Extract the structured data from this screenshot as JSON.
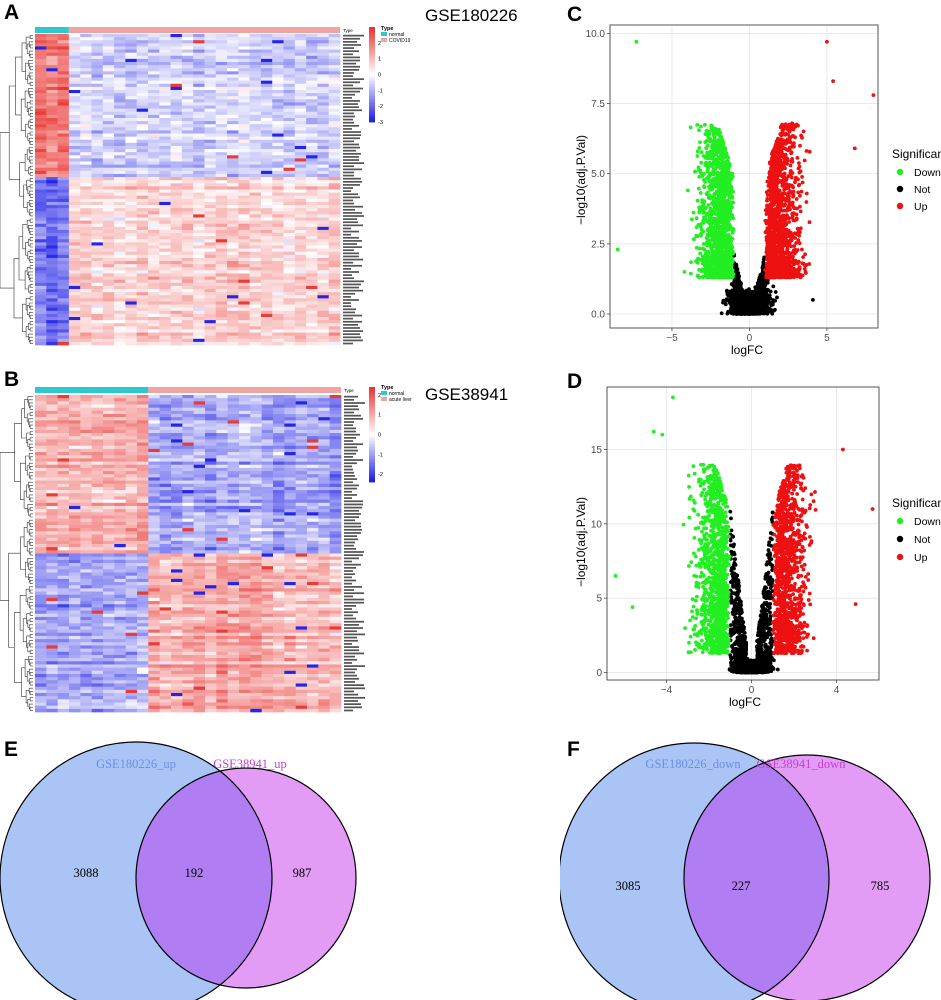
{
  "panels": {
    "a": {
      "letter": "A"
    },
    "b": {
      "letter": "B"
    },
    "c": {
      "letter": "C"
    },
    "d": {
      "letter": "D"
    },
    "e": {
      "letter": "E"
    },
    "f": {
      "letter": "F"
    }
  },
  "colors": {
    "normal": "#2ec8cf",
    "disease": "#f0a4a0",
    "heat_low": "#1a1ae6",
    "heat_mid": "#ffffff",
    "heat_high": "#e8312e",
    "down": "#22ee22",
    "not": "#000000",
    "up": "#ee1111",
    "venn_left": "#a9c4f5",
    "venn_right": "#e39cf6",
    "venn_overlap": "#b07ef2"
  },
  "chart_data": [
    {
      "id": "heatmap_a",
      "type": "heatmap",
      "title": "GSE180226",
      "legend_title": "Type",
      "groups": [
        "normal",
        "COVID19"
      ],
      "group_sizes": [
        3,
        24
      ],
      "n_genes": 100,
      "upper_genes": 46,
      "scale_ticks": [
        2,
        1,
        0,
        -1,
        -2,
        -3
      ],
      "scale_range": [
        -3,
        3
      ]
    },
    {
      "id": "heatmap_b",
      "type": "heatmap",
      "title": "GSE38941",
      "legend_title": "Type",
      "groups": [
        "normal",
        "acute liver"
      ],
      "group_sizes": [
        10,
        17
      ],
      "n_genes": 100,
      "upper_genes": 50,
      "scale_ticks": [
        2,
        1,
        0,
        -1,
        -2
      ],
      "scale_range": [
        -2.4,
        2.4
      ]
    },
    {
      "id": "volcano_c",
      "type": "scatter",
      "xlabel": "logFC",
      "ylabel": "−log10(adj.P.Val)",
      "xlim": [
        -9,
        8.3
      ],
      "ylim": [
        -0.5,
        10.3
      ],
      "xticks": [
        -5,
        0,
        5
      ],
      "xtick_labels": [
        "−5",
        "0",
        "5"
      ],
      "yticks": [
        0,
        2.5,
        5,
        7.5,
        10
      ],
      "ytick_labels": [
        "0.0",
        "2.5",
        "5.0",
        "7.5",
        "10.0"
      ],
      "legend": {
        "title": "Significant",
        "entries": [
          "Down",
          "Not",
          "Up"
        ]
      },
      "thresholds": {
        "logFC": 1,
        "y": 1.3
      },
      "outliers": [
        [
          -7.3,
          9.7
        ],
        [
          5.0,
          9.7
        ],
        [
          5.4,
          8.3
        ],
        [
          8.0,
          7.8
        ],
        [
          6.8,
          5.9
        ],
        [
          -8.5,
          2.3
        ],
        [
          4.1,
          0.5
        ],
        [
          -4.2,
          1.5
        ]
      ]
    },
    {
      "id": "volcano_d",
      "type": "scatter",
      "xlabel": "logFC",
      "ylabel": "−log10(adj.P.Val)",
      "xlim": [
        -6.8,
        6.0
      ],
      "ylim": [
        -0.5,
        19.2
      ],
      "xticks": [
        -4,
        0,
        4
      ],
      "xtick_labels": [
        "−4",
        "0",
        "4"
      ],
      "yticks": [
        0,
        5,
        10,
        15
      ],
      "ytick_labels": [
        "0",
        "5",
        "10",
        "15"
      ],
      "legend": {
        "title": "Significant",
        "entries": [
          "Down",
          "Not",
          "Up"
        ]
      },
      "thresholds": {
        "logFC": 1,
        "y": 1.3
      },
      "outliers": [
        [
          -3.7,
          18.5
        ],
        [
          -4.6,
          16.2
        ],
        [
          -4.2,
          16.0
        ],
        [
          -6.4,
          6.5
        ],
        [
          -5.6,
          4.4
        ],
        [
          5.7,
          11.0
        ],
        [
          4.9,
          4.6
        ],
        [
          4.3,
          15.0
        ]
      ]
    },
    {
      "id": "venn_e",
      "type": "venn",
      "sets": [
        "GSE180226_up",
        "GSE38941_up"
      ],
      "only_left": "3088",
      "both": "192",
      "only_right": "987"
    },
    {
      "id": "venn_f",
      "type": "venn",
      "sets": [
        "GSE180226_down",
        "GSE38941_down"
      ],
      "only_left": "3085",
      "both": "227",
      "only_right": "785"
    }
  ]
}
